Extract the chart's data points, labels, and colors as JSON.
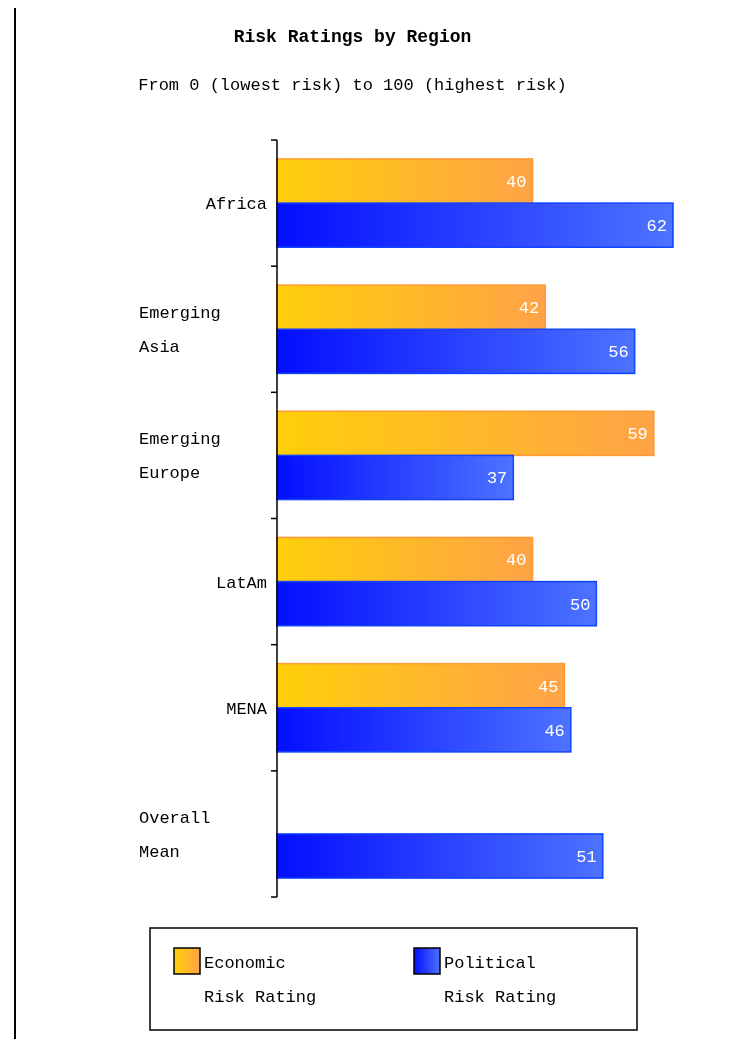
{
  "chart_data": {
    "type": "bar",
    "orientation": "horizontal",
    "title": "Risk Ratings by Region",
    "subtitle": "From 0 (lowest risk) to 100 (highest risk)",
    "categories": [
      "Africa",
      "Emerging Asia",
      "Emerging Europe",
      "LatAm",
      "MENA",
      "Overall Mean"
    ],
    "series": [
      {
        "name": "Economic Risk Rating",
        "color": "#ff9933",
        "values": [
          40,
          42,
          59,
          40,
          45,
          null
        ]
      },
      {
        "name": "Political Risk Rating",
        "color": "#1144ff",
        "values": [
          62,
          56,
          37,
          50,
          46,
          51
        ]
      }
    ],
    "data_labels": true,
    "legend": "bottom"
  }
}
